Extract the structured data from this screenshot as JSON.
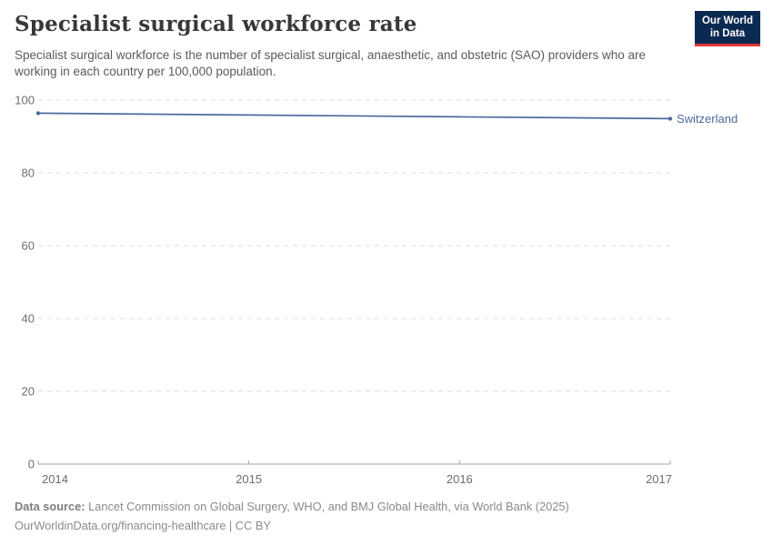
{
  "header": {
    "title": "Specialist surgical workforce rate",
    "subtitle": "Specialist surgical workforce is the number of specialist surgical, anaesthetic, and obstetric (SAO) providers who are working in each country per 100,000 population.",
    "logo": {
      "line1": "Our World",
      "line2": "in Data",
      "bg_color": "#0b2a51",
      "accent_color": "#e0373c"
    }
  },
  "chart_data": {
    "type": "line",
    "title": "Specialist surgical workforce rate",
    "x": [
      2014,
      2015,
      2016,
      2017
    ],
    "series": [
      {
        "name": "Switzerland",
        "values": [
          96.4,
          95.9,
          95.4,
          94.9
        ],
        "color": "#4C6A9C"
      }
    ],
    "xlabel": "",
    "ylabel": "",
    "xlim": [
      2014,
      2017
    ],
    "ylim": [
      0,
      100
    ],
    "yticks": [
      0,
      20,
      40,
      60,
      80,
      100
    ],
    "xticks": [
      2014,
      2015,
      2016,
      2017
    ],
    "grid": "horizontal-dashed",
    "legend": "end-of-line-label",
    "colors": {
      "gridline": "#dcdcdc",
      "axis": "#a3a3a3",
      "tick_text": "#6e6e6e"
    }
  },
  "footer": {
    "datasource_label": "Data source:",
    "datasource_text": " Lancet Commission on Global Surgery, WHO, and BMJ Global Health, via World Bank (2025)",
    "link_text": "OurWorldinData.org/financing-healthcare | CC BY"
  }
}
